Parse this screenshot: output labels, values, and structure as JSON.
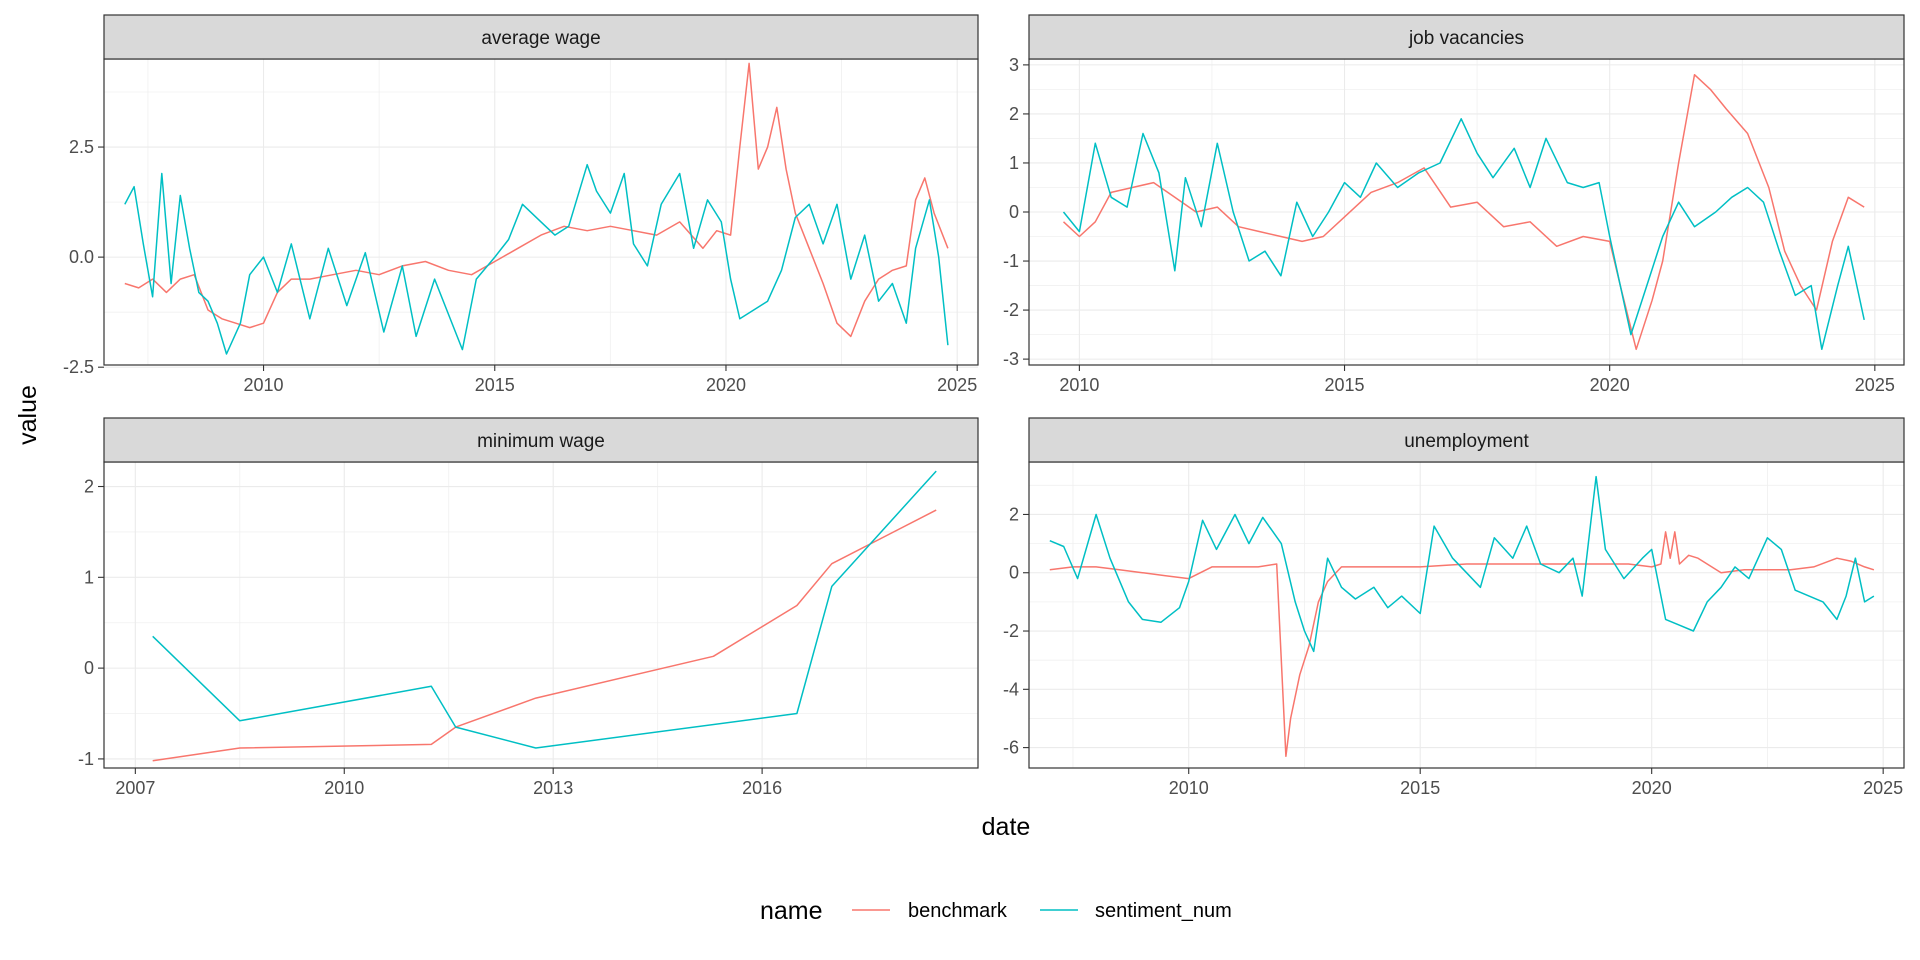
{
  "chart_data": {
    "type": "line",
    "facet_layout": "2x2",
    "x_title": "date",
    "y_title": "value",
    "legend": {
      "title": "name",
      "position": "bottom",
      "entries": [
        {
          "name": "benchmark",
          "color": "#F8766D"
        },
        {
          "name": "sentiment_num",
          "color": "#00BFC4"
        }
      ]
    },
    "grid": true,
    "panels": [
      {
        "title": "average wage",
        "xlim": [
          2006.55,
          2025.45
        ],
        "ylim": [
          -2.45,
          4.5
        ],
        "x_ticks": [
          2010,
          2015,
          2020,
          2025
        ],
        "x_tick_labels": [
          "2010",
          "2015",
          "2020",
          "2025"
        ],
        "y_ticks": [
          -2.5,
          0.0,
          2.5
        ],
        "y_tick_labels": [
          "-2.5",
          "0.0",
          "2.5"
        ],
        "series": [
          {
            "name": "benchmark",
            "x": [
              2007.0,
              2007.3,
              2007.6,
              2007.9,
              2008.2,
              2008.5,
              2008.8,
              2009.1,
              2009.4,
              2009.7,
              2010.0,
              2010.3,
              2010.6,
              2011.0,
              2011.5,
              2012.0,
              2012.5,
              2013.0,
              2013.5,
              2014.0,
              2014.5,
              2015.0,
              2015.5,
              2016.0,
              2016.5,
              2017.0,
              2017.5,
              2018.0,
              2018.5,
              2019.0,
              2019.5,
              2019.8,
              2020.1,
              2020.3,
              2020.5,
              2020.7,
              2020.9,
              2021.1,
              2021.3,
              2021.5,
              2021.8,
              2022.1,
              2022.4,
              2022.7,
              2023.0,
              2023.3,
              2023.6,
              2023.9,
              2024.1,
              2024.3,
              2024.5,
              2024.8
            ],
            "values": [
              -0.6,
              -0.7,
              -0.5,
              -0.8,
              -0.5,
              -0.4,
              -1.2,
              -1.4,
              -1.5,
              -1.6,
              -1.5,
              -0.8,
              -0.5,
              -0.5,
              -0.4,
              -0.3,
              -0.4,
              -0.2,
              -0.1,
              -0.3,
              -0.4,
              -0.1,
              0.2,
              0.5,
              0.7,
              0.6,
              0.7,
              0.6,
              0.5,
              0.8,
              0.2,
              0.6,
              0.5,
              2.5,
              4.4,
              2.0,
              2.5,
              3.4,
              2.0,
              1.0,
              0.2,
              -0.6,
              -1.5,
              -1.8,
              -1.0,
              -0.5,
              -0.3,
              -0.2,
              1.3,
              1.8,
              1.0,
              0.2
            ]
          },
          {
            "name": "sentiment_num",
            "x": [
              2007.0,
              2007.2,
              2007.4,
              2007.6,
              2007.8,
              2008.0,
              2008.2,
              2008.4,
              2008.6,
              2008.8,
              2009.0,
              2009.2,
              2009.5,
              2009.7,
              2010.0,
              2010.3,
              2010.6,
              2011.0,
              2011.4,
              2011.8,
              2012.2,
              2012.6,
              2013.0,
              2013.3,
              2013.7,
              2014.0,
              2014.3,
              2014.6,
              2015.0,
              2015.3,
              2015.6,
              2016.0,
              2016.3,
              2016.6,
              2017.0,
              2017.2,
              2017.5,
              2017.8,
              2018.0,
              2018.3,
              2018.6,
              2019.0,
              2019.3,
              2019.6,
              2019.9,
              2020.1,
              2020.3,
              2020.6,
              2020.9,
              2021.2,
              2021.5,
              2021.8,
              2022.1,
              2022.4,
              2022.7,
              2023.0,
              2023.3,
              2023.6,
              2023.9,
              2024.1,
              2024.4,
              2024.6,
              2024.8
            ],
            "values": [
              1.2,
              1.6,
              0.3,
              -0.9,
              1.9,
              -0.6,
              1.4,
              0.2,
              -0.8,
              -1.0,
              -1.5,
              -2.2,
              -1.5,
              -0.4,
              0.0,
              -0.8,
              0.3,
              -1.4,
              0.2,
              -1.1,
              0.1,
              -1.7,
              -0.2,
              -1.8,
              -0.5,
              -1.3,
              -2.1,
              -0.5,
              0.0,
              0.4,
              1.2,
              0.8,
              0.5,
              0.7,
              2.1,
              1.5,
              1.0,
              1.9,
              0.3,
              -0.2,
              1.2,
              1.9,
              0.2,
              1.3,
              0.8,
              -0.5,
              -1.4,
              -1.2,
              -1.0,
              -0.3,
              0.9,
              1.2,
              0.3,
              1.2,
              -0.5,
              0.5,
              -1.0,
              -0.6,
              -1.5,
              0.2,
              1.3,
              0.0,
              -2.0
            ]
          }
        ]
      },
      {
        "title": "job vacancies",
        "xlim": [
          2009.05,
          2025.55
        ],
        "ylim": [
          -3.12,
          3.12
        ],
        "x_ticks": [
          2010,
          2015,
          2020,
          2025
        ],
        "x_tick_labels": [
          "2010",
          "2015",
          "2020",
          "2025"
        ],
        "y_ticks": [
          -3,
          -2,
          -1,
          0,
          1,
          2,
          3
        ],
        "y_tick_labels": [
          "-3",
          "-2",
          "-1",
          "0",
          "1",
          "2",
          "3"
        ],
        "series": [
          {
            "name": "benchmark",
            "x": [
              2009.7,
              2010.0,
              2010.3,
              2010.6,
              2011.0,
              2011.4,
              2011.8,
              2012.2,
              2012.6,
              2013.0,
              2013.4,
              2013.8,
              2014.2,
              2014.6,
              2015.0,
              2015.5,
              2016.0,
              2016.5,
              2017.0,
              2017.5,
              2018.0,
              2018.5,
              2019.0,
              2019.5,
              2020.0,
              2020.2,
              2020.5,
              2020.8,
              2021.0,
              2021.3,
              2021.6,
              2021.9,
              2022.2,
              2022.6,
              2023.0,
              2023.3,
              2023.6,
              2023.9,
              2024.2,
              2024.5,
              2024.8
            ],
            "values": [
              -0.2,
              -0.5,
              -0.2,
              0.4,
              0.5,
              0.6,
              0.3,
              0.0,
              0.1,
              -0.3,
              -0.4,
              -0.5,
              -0.6,
              -0.5,
              -0.1,
              0.4,
              0.6,
              0.9,
              0.1,
              0.2,
              -0.3,
              -0.2,
              -0.7,
              -0.5,
              -0.6,
              -1.5,
              -2.8,
              -1.8,
              -1.0,
              1.0,
              2.8,
              2.5,
              2.1,
              1.6,
              0.5,
              -0.8,
              -1.5,
              -2.0,
              -0.6,
              0.3,
              0.1
            ]
          },
          {
            "name": "sentiment_num",
            "x": [
              2009.7,
              2010.0,
              2010.3,
              2010.6,
              2010.9,
              2011.2,
              2011.5,
              2011.8,
              2012.0,
              2012.3,
              2012.6,
              2012.9,
              2013.2,
              2013.5,
              2013.8,
              2014.1,
              2014.4,
              2014.7,
              2015.0,
              2015.3,
              2015.6,
              2016.0,
              2016.4,
              2016.8,
              2017.2,
              2017.5,
              2017.8,
              2018.2,
              2018.5,
              2018.8,
              2019.2,
              2019.5,
              2019.8,
              2020.0,
              2020.2,
              2020.4,
              2020.7,
              2021.0,
              2021.3,
              2021.6,
              2022.0,
              2022.3,
              2022.6,
              2022.9,
              2023.2,
              2023.5,
              2023.8,
              2024.0,
              2024.3,
              2024.5,
              2024.8
            ],
            "values": [
              0.0,
              -0.4,
              1.4,
              0.3,
              0.1,
              1.6,
              0.8,
              -1.2,
              0.7,
              -0.3,
              1.4,
              0.0,
              -1.0,
              -0.8,
              -1.3,
              0.2,
              -0.5,
              0.0,
              0.6,
              0.3,
              1.0,
              0.5,
              0.8,
              1.0,
              1.9,
              1.2,
              0.7,
              1.3,
              0.5,
              1.5,
              0.6,
              0.5,
              0.6,
              -0.5,
              -1.5,
              -2.5,
              -1.5,
              -0.5,
              0.2,
              -0.3,
              0.0,
              0.3,
              0.5,
              0.2,
              -0.8,
              -1.7,
              -1.5,
              -2.8,
              -1.5,
              -0.7,
              -2.2
            ]
          }
        ]
      },
      {
        "title": "minimum wage",
        "xlim": [
          2006.55,
          2019.1
        ],
        "ylim": [
          -1.1,
          2.27
        ],
        "x_ticks": [
          2007,
          2010,
          2013,
          2016
        ],
        "x_tick_labels": [
          "2007",
          "2010",
          "2013",
          "2016"
        ],
        "y_ticks": [
          -1,
          0,
          1,
          2
        ],
        "y_tick_labels": [
          "-1",
          "0",
          "1",
          "2"
        ],
        "series": [
          {
            "name": "benchmark",
            "x": [
              2007.25,
              2008.5,
              2011.25,
              2011.6,
              2012.75,
              2015.3,
              2016.5,
              2017.0,
              2018.5
            ],
            "values": [
              -1.02,
              -0.88,
              -0.84,
              -0.65,
              -0.33,
              0.13,
              0.69,
              1.15,
              1.74
            ]
          },
          {
            "name": "sentiment_num",
            "x": [
              2007.25,
              2008.5,
              2011.25,
              2011.6,
              2012.75,
              2016.5,
              2017.0,
              2018.5
            ],
            "values": [
              0.35,
              -0.58,
              -0.2,
              -0.65,
              -0.88,
              -0.5,
              0.9,
              2.17
            ]
          }
        ]
      },
      {
        "title": "unemployment",
        "xlim": [
          2006.55,
          2025.45
        ],
        "ylim": [
          -6.7,
          3.8
        ],
        "x_ticks": [
          2010,
          2015,
          2020,
          2025
        ],
        "x_tick_labels": [
          "2010",
          "2015",
          "2020",
          "2025"
        ],
        "y_ticks": [
          -6,
          -4,
          -2,
          0,
          2
        ],
        "y_tick_labels": [
          "-6",
          "-4",
          "-2",
          "0",
          "2"
        ],
        "series": [
          {
            "name": "benchmark",
            "x": [
              2007.0,
              2007.5,
              2008.0,
              2008.5,
              2009.0,
              2009.5,
              2010.0,
              2010.5,
              2011.0,
              2011.5,
              2011.9,
              2012.0,
              2012.1,
              2012.2,
              2012.4,
              2012.6,
              2012.8,
              2013.0,
              2013.3,
              2014.0,
              2015.0,
              2016.0,
              2017.0,
              2018.0,
              2019.0,
              2019.5,
              2020.0,
              2020.2,
              2020.3,
              2020.4,
              2020.5,
              2020.6,
              2020.8,
              2021.0,
              2021.5,
              2022.0,
              2023.0,
              2023.5,
              2024.0,
              2024.3,
              2024.6,
              2024.8
            ],
            "values": [
              0.1,
              0.2,
              0.2,
              0.1,
              0.0,
              -0.1,
              -0.2,
              0.2,
              0.2,
              0.2,
              0.3,
              -3.0,
              -6.3,
              -5.0,
              -3.5,
              -2.5,
              -1.0,
              -0.3,
              0.2,
              0.2,
              0.2,
              0.3,
              0.3,
              0.3,
              0.3,
              0.3,
              0.2,
              0.3,
              1.4,
              0.5,
              1.4,
              0.3,
              0.6,
              0.5,
              0.0,
              0.1,
              0.1,
              0.2,
              0.5,
              0.4,
              0.2,
              0.1
            ]
          },
          {
            "name": "sentiment_num",
            "x": [
              2007.0,
              2007.3,
              2007.6,
              2008.0,
              2008.3,
              2008.7,
              2009.0,
              2009.4,
              2009.8,
              2010.0,
              2010.3,
              2010.6,
              2011.0,
              2011.3,
              2011.6,
              2012.0,
              2012.3,
              2012.5,
              2012.7,
              2013.0,
              2013.3,
              2013.6,
              2014.0,
              2014.3,
              2014.6,
              2015.0,
              2015.3,
              2015.7,
              2016.0,
              2016.3,
              2016.6,
              2017.0,
              2017.3,
              2017.6,
              2018.0,
              2018.3,
              2018.5,
              2018.8,
              2019.0,
              2019.4,
              2019.8,
              2020.0,
              2020.3,
              2020.6,
              2020.9,
              2021.2,
              2021.5,
              2021.8,
              2022.1,
              2022.5,
              2022.8,
              2023.1,
              2023.4,
              2023.7,
              2024.0,
              2024.2,
              2024.4,
              2024.6,
              2024.8
            ],
            "values": [
              1.1,
              0.9,
              -0.2,
              2.0,
              0.5,
              -1.0,
              -1.6,
              -1.7,
              -1.2,
              -0.3,
              1.8,
              0.8,
              2.0,
              1.0,
              1.9,
              1.0,
              -1.0,
              -2.0,
              -2.7,
              0.5,
              -0.5,
              -0.9,
              -0.5,
              -1.2,
              -0.8,
              -1.4,
              1.6,
              0.5,
              0.0,
              -0.5,
              1.2,
              0.5,
              1.6,
              0.3,
              0.0,
              0.5,
              -0.8,
              3.3,
              0.8,
              -0.2,
              0.5,
              0.8,
              -1.6,
              -1.8,
              -2.0,
              -1.0,
              -0.5,
              0.2,
              -0.2,
              1.2,
              0.8,
              -0.6,
              -0.8,
              -1.0,
              -1.6,
              -0.8,
              0.5,
              -1.0,
              -0.8
            ]
          }
        ]
      }
    ]
  }
}
